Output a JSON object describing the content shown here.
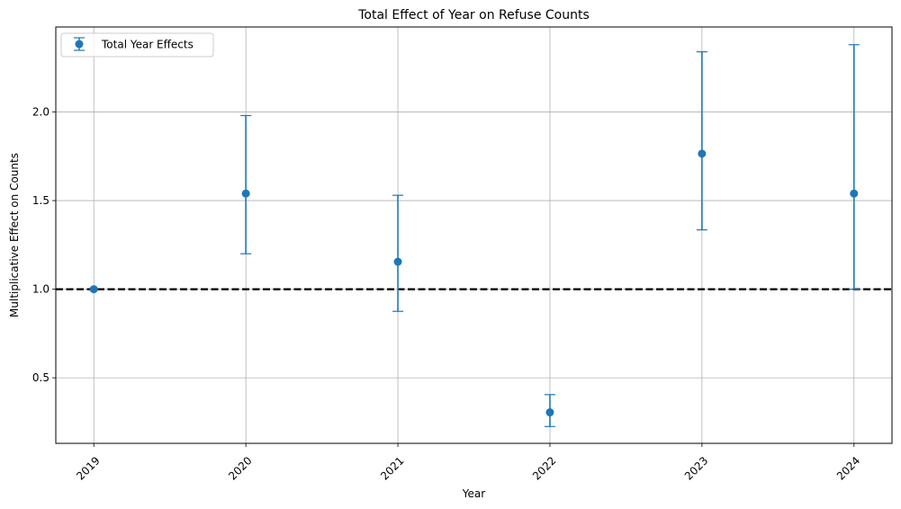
{
  "chart_data": {
    "type": "scatter",
    "title": "Total Effect of Year on Refuse Counts",
    "xlabel": "Year",
    "ylabel": "Multiplicative Effect on Counts",
    "xlim": [
      2018.75,
      2024.25
    ],
    "ylim": [
      0.13,
      2.48
    ],
    "xticks": [
      "2019",
      "2020",
      "2021",
      "2022",
      "2023",
      "2024"
    ],
    "yticks": [
      "0.5",
      "1.0",
      "1.5",
      "2.0"
    ],
    "ytick_values": [
      0.5,
      1.0,
      1.5,
      2.0
    ],
    "grid": true,
    "legend_position": "top-left",
    "reference_line": {
      "y": 1.0,
      "style": "dashed",
      "color": "#000000"
    },
    "series": [
      {
        "name": "Total Year Effects",
        "color": "#1f77b4",
        "x": [
          2019,
          2020,
          2021,
          2022,
          2023,
          2024
        ],
        "y": [
          1.0,
          1.54,
          1.155,
          0.305,
          1.765,
          1.54
        ],
        "lower": [
          1.0,
          1.2,
          0.875,
          0.225,
          1.335,
          1.0
        ],
        "upper": [
          1.0,
          1.98,
          1.53,
          0.405,
          2.34,
          2.38
        ]
      }
    ]
  }
}
